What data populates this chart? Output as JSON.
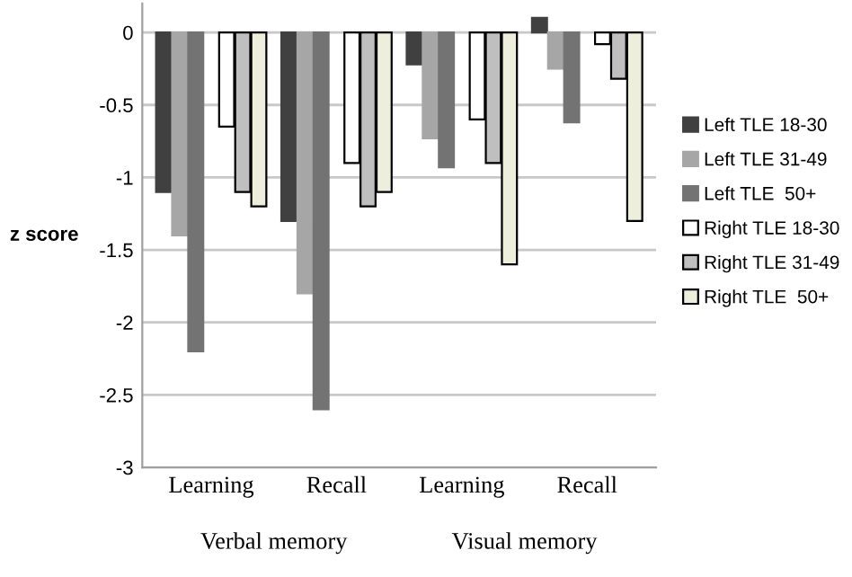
{
  "chart_data": {
    "type": "bar",
    "ylabel": "z score",
    "categories": [
      "Learning",
      "Recall",
      "Learning",
      "Recall"
    ],
    "annotations": [
      "Verbal memory",
      "Visual memory"
    ],
    "series": [
      {
        "name": "Left TLE 18-30",
        "color": "#404040",
        "values": [
          -1.1,
          -1.3,
          -0.22,
          0.1
        ]
      },
      {
        "name": "Left TLE 31-49",
        "color": "#a6a6a6",
        "values": [
          -1.4,
          -1.8,
          -0.73,
          -0.25
        ]
      },
      {
        "name": "Left TLE  50+",
        "color": "#737373",
        "values": [
          -2.2,
          -2.6,
          -0.93,
          -0.62
        ]
      },
      {
        "name": "Right TLE 18-30",
        "color": "#ffffff",
        "values": [
          -0.65,
          -0.9,
          -0.6,
          -0.08
        ]
      },
      {
        "name": "Right TLE 31-49",
        "color": "#bfbfbf",
        "values": [
          -1.1,
          -1.2,
          -0.9,
          -0.32
        ]
      },
      {
        "name": "Right TLE  50+",
        "color": "#eeeedd",
        "values": [
          -1.2,
          -1.1,
          -1.6,
          -1.3
        ]
      }
    ],
    "ylim": [
      -3,
      0.2
    ],
    "yticks": [
      0,
      -0.5,
      -1,
      -1.5,
      -2,
      -2.5,
      -3
    ],
    "grid": "y",
    "legend": "right"
  }
}
